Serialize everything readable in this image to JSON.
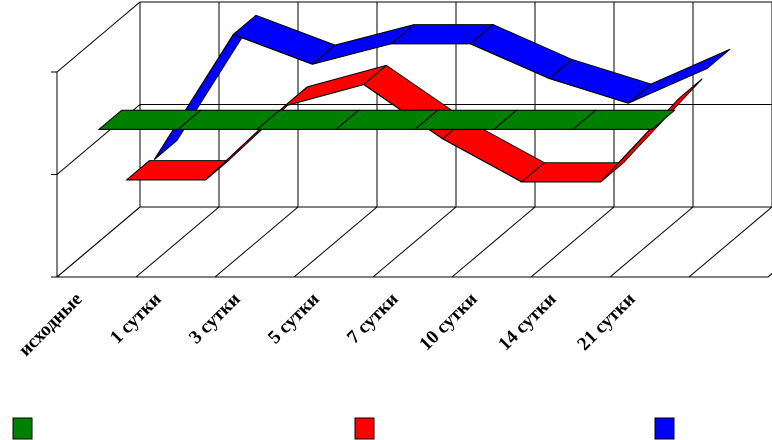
{
  "chart_data": {
    "type": "line3d",
    "categories": [
      "исходные",
      "1 сутки",
      "3 сутки",
      "5 сутки",
      "7 сутки",
      "10 сутки",
      "14 сутки",
      "21 сутки"
    ],
    "series": [
      {
        "color": "#008000",
        "values": [
          1.42,
          1.42,
          1.42,
          1.42,
          1.42,
          1.42,
          1.42,
          1.42
        ]
      },
      {
        "color": "#ff0000",
        "values": [
          0.7,
          0.7,
          1.42,
          1.63,
          1.1,
          0.68,
          0.68,
          1.5
        ]
      },
      {
        "color": "#0000ff",
        "values": [
          0.67,
          1.89,
          1.6,
          1.8,
          1.8,
          1.46,
          1.22,
          1.56
        ]
      }
    ],
    "ylim": [
      0,
      2
    ],
    "yticks": [
      0,
      1,
      2
    ],
    "grid": true
  }
}
